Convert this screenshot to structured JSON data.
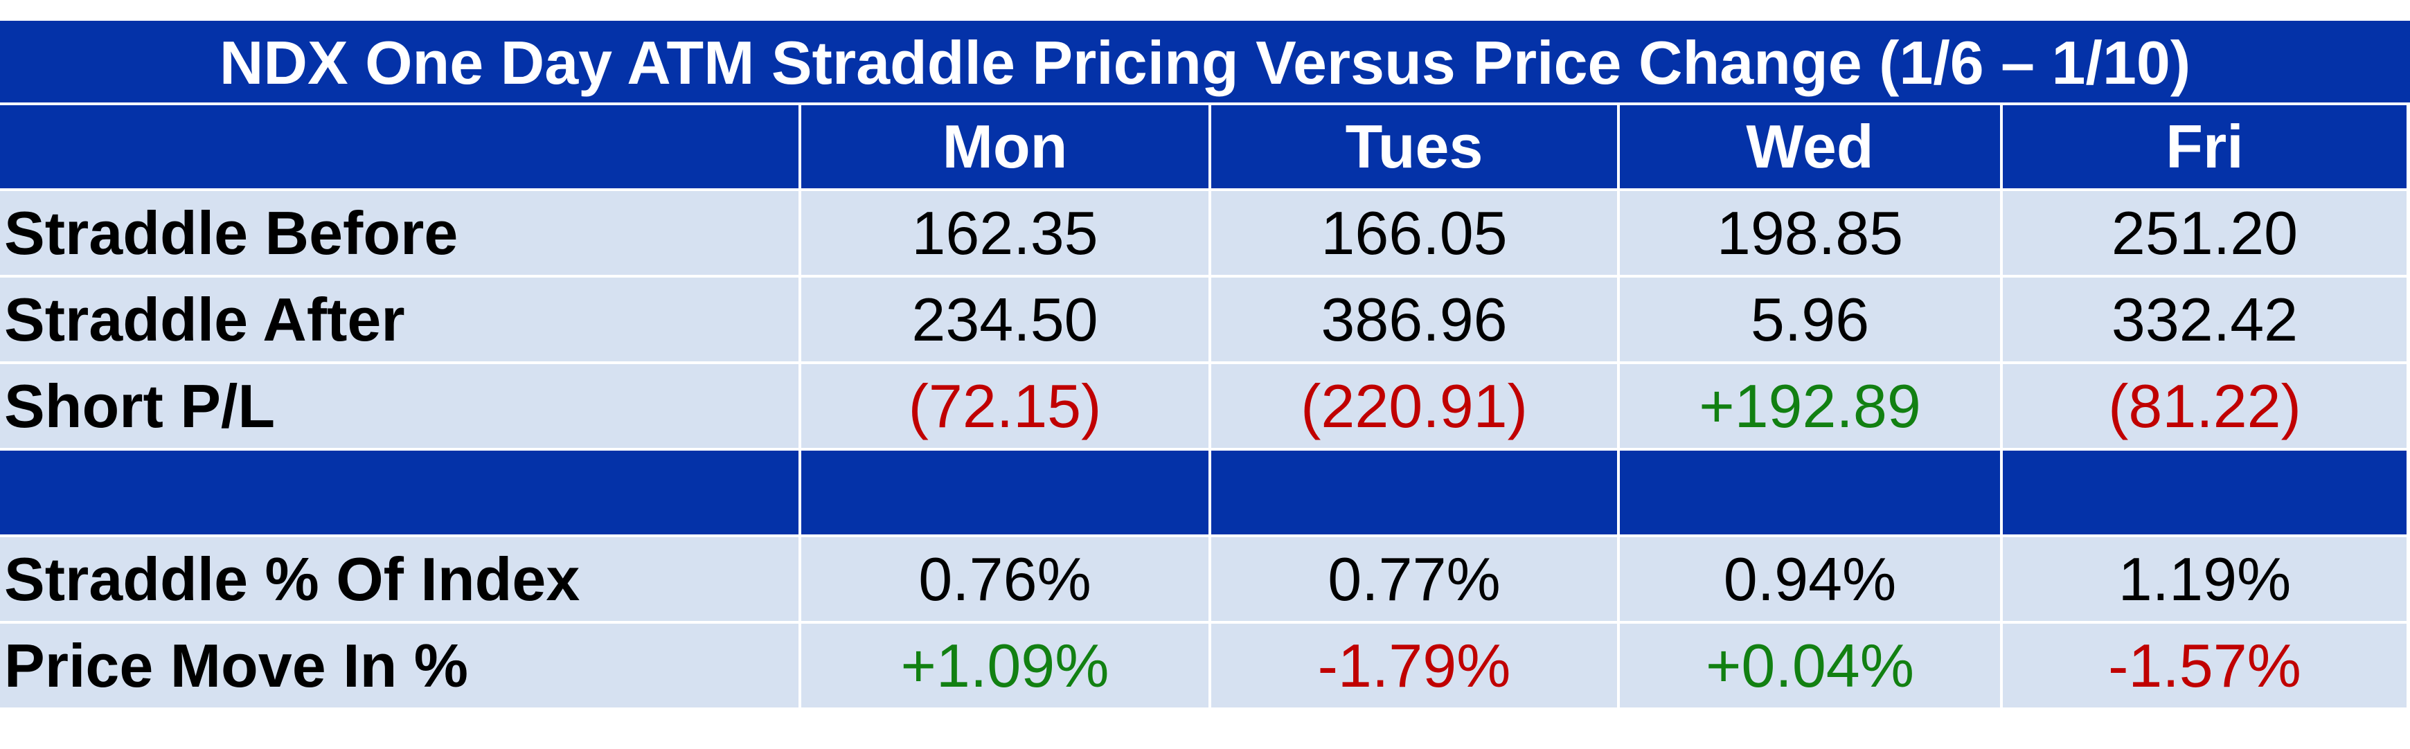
{
  "colors": {
    "header_bg": "#0432a8",
    "row_bg": "#d6e1f1",
    "negative": "#c00000",
    "positive": "#128012"
  },
  "chart_data": {
    "type": "table",
    "title": "NDX One Day ATM Straddle Pricing Versus Price Change (1/6 – 1/10)",
    "columns": [
      "Mon",
      "Tues",
      "Wed",
      "Fri"
    ],
    "rows": [
      {
        "label": "Straddle Before",
        "values": [
          "162.35",
          "166.05",
          "198.85",
          "251.20"
        ],
        "signs": [
          "",
          "",
          "",
          ""
        ]
      },
      {
        "label": "Straddle After",
        "values": [
          "234.50",
          "386.96",
          "5.96",
          "332.42"
        ],
        "signs": [
          "",
          "",
          "",
          ""
        ]
      },
      {
        "label": "Short P/L",
        "values": [
          "(72.15)",
          "(220.91)",
          "+192.89",
          "(81.22)"
        ],
        "signs": [
          "neg",
          "neg",
          "pos",
          "neg"
        ]
      },
      {
        "label": "Straddle % Of Index",
        "values": [
          "0.76%",
          "0.77%",
          "0.94%",
          "1.19%"
        ],
        "signs": [
          "",
          "",
          "",
          ""
        ]
      },
      {
        "label": "Price Move In %",
        "values": [
          "+1.09%",
          "-1.79%",
          "+0.04%",
          "-1.57%"
        ],
        "signs": [
          "pos",
          "neg",
          "pos",
          "neg"
        ]
      }
    ]
  }
}
